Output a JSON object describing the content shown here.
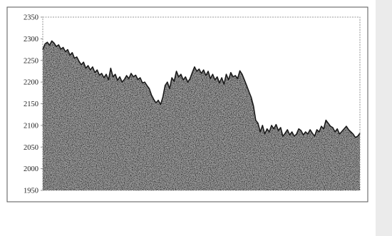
{
  "chart_data": {
    "type": "area",
    "title": "",
    "xlabel": "",
    "ylabel": "",
    "ylim": [
      1950,
      2350
    ],
    "yticks": [
      "2350",
      "2300",
      "2250",
      "2200",
      "2150",
      "2100",
      "2050",
      "2000",
      "1950"
    ],
    "grid": false,
    "legend": "none",
    "x": [
      0,
      1,
      2,
      3,
      4,
      5,
      6,
      7,
      8,
      9,
      10,
      11,
      12,
      13,
      14,
      15,
      16,
      17,
      18,
      19,
      20,
      21,
      22,
      23,
      24,
      25,
      26,
      27,
      28,
      29,
      30,
      31,
      32,
      33,
      34,
      35,
      36,
      37,
      38,
      39,
      40,
      41,
      42,
      43,
      44,
      45,
      46,
      47,
      48,
      49,
      50,
      51,
      52,
      53,
      54,
      55,
      56,
      57,
      58,
      59,
      60,
      61,
      62,
      63,
      64,
      65,
      66,
      67,
      68,
      69,
      70,
      71,
      72,
      73,
      74,
      75,
      76,
      77,
      78,
      79,
      80,
      81,
      82,
      83,
      84,
      85,
      86,
      87,
      88,
      89,
      90,
      91,
      92,
      93,
      94,
      95,
      96,
      97,
      98,
      99,
      100,
      101,
      102,
      103,
      104,
      105,
      106,
      107,
      108,
      109,
      110,
      111,
      112,
      113,
      114,
      115,
      116,
      117,
      118,
      119,
      120,
      121,
      122,
      123,
      124,
      125,
      126,
      127,
      128,
      129,
      130,
      131,
      132,
      133,
      134,
      135,
      136,
      137,
      138,
      139,
      140
    ],
    "series": [
      {
        "values": [
          2275,
          2288,
          2292,
          2285,
          2295,
          2290,
          2282,
          2286,
          2276,
          2280,
          2270,
          2275,
          2262,
          2268,
          2255,
          2258,
          2248,
          2240,
          2246,
          2232,
          2238,
          2228,
          2235,
          2222,
          2228,
          2216,
          2220,
          2210,
          2218,
          2205,
          2232,
          2212,
          2218,
          2204,
          2212,
          2200,
          2206,
          2215,
          2208,
          2220,
          2212,
          2216,
          2206,
          2210,
          2198,
          2200,
          2192,
          2185,
          2170,
          2160,
          2152,
          2158,
          2148,
          2165,
          2192,
          2200,
          2185,
          2210,
          2202,
          2225,
          2212,
          2218,
          2205,
          2212,
          2200,
          2208,
          2222,
          2235,
          2225,
          2230,
          2220,
          2228,
          2215,
          2225,
          2208,
          2218,
          2205,
          2212,
          2198,
          2210,
          2195,
          2218,
          2205,
          2222,
          2212,
          2215,
          2208,
          2226,
          2218,
          2205,
          2192,
          2178,
          2165,
          2145,
          2112,
          2105,
          2085,
          2100,
          2080,
          2092,
          2085,
          2100,
          2092,
          2102,
          2088,
          2095,
          2075,
          2082,
          2090,
          2078,
          2085,
          2075,
          2080,
          2092,
          2088,
          2078,
          2085,
          2080,
          2090,
          2082,
          2075,
          2090,
          2085,
          2098,
          2092,
          2112,
          2105,
          2098,
          2095,
          2085,
          2092,
          2080,
          2086,
          2092,
          2098,
          2090,
          2085,
          2080,
          2072,
          2075,
          2082
        ]
      }
    ]
  },
  "page": {
    "sidebar_color": "#ebebeb",
    "fill_color": "#8a8a8a",
    "line_color": "#1a1a1a",
    "frame_color": "#555555"
  }
}
